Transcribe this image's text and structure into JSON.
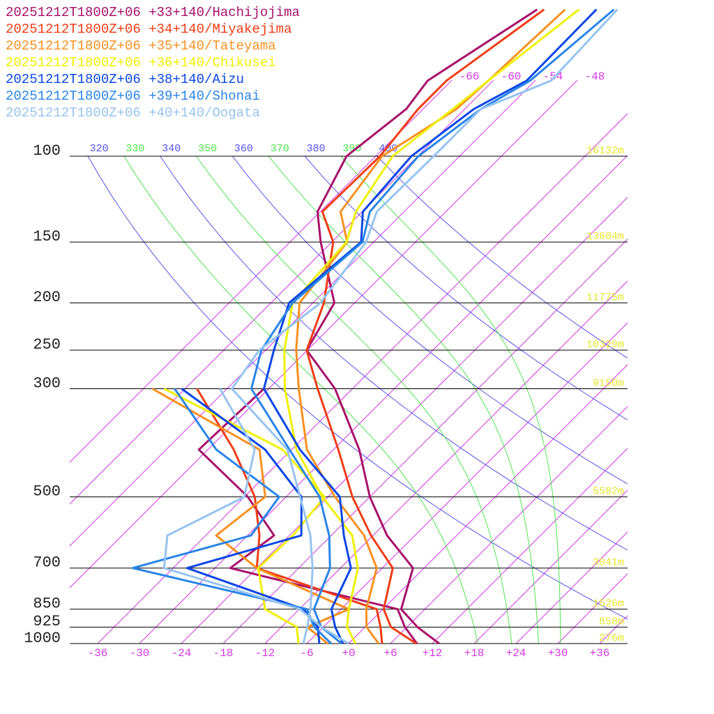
{
  "chart_data": {
    "type": "skewt",
    "ylim": [
      1000,
      100
    ],
    "log_y": true,
    "xlim": [
      -40,
      40
    ],
    "xticks": [
      -36,
      -30,
      -24,
      -18,
      -12,
      -6,
      {
        "value": 0,
        "label": "+0"
      },
      {
        "value": 6,
        "label": "+6"
      },
      {
        "value": 12,
        "label": "+12"
      },
      {
        "value": 18,
        "label": "+18"
      },
      {
        "value": 24,
        "label": "+24"
      },
      {
        "value": 30,
        "label": "+30"
      },
      {
        "value": 36,
        "label": "+36"
      }
    ],
    "isotherm_labels": [
      -66,
      -60,
      -54,
      -48
    ],
    "isotherm_color": "#d436e6",
    "dry_adiabats": [
      320,
      340,
      360,
      380,
      400
    ],
    "dry_adiabat_color": "#5252e8",
    "moist_adiabats": [
      330,
      350,
      370,
      390
    ],
    "moist_adiabat_color": "#4ee44e",
    "pressure_ticks": [
      100,
      150,
      200,
      250,
      300,
      500,
      700,
      850,
      925,
      1000
    ],
    "height_labels": [
      {
        "value": 16132,
        "label": "16132m"
      },
      {
        "value": 13604,
        "label": "13604m"
      },
      {
        "value": 11775,
        "label": "11775m"
      },
      {
        "value": 10329,
        "label": "10329m"
      },
      {
        "value": 9150,
        "label": "9150m"
      },
      {
        "value": 5582,
        "label": "5582m"
      },
      {
        "value": 3041,
        "label": "3041m"
      },
      {
        "value": 1526,
        "label": "1526m"
      },
      {
        "value": 858,
        "label": "858m"
      },
      {
        "value": 276,
        "label": "276m"
      }
    ],
    "height_label_color": "#e6e62a",
    "series": [
      {
        "name": "20251212T1800Z+06 +33+140/Hachijojima",
        "color": "#a8106a",
        "pressure": [
          1000,
          925,
          850,
          700,
          600,
          500,
          400,
          300,
          250,
          200,
          150,
          130,
          100,
          80,
          70,
          50
        ],
        "temperature": [
          13.0,
          7.5,
          2.6,
          -1.6,
          -10.0,
          -18.0,
          -26.3,
          -38.5,
          -48.1,
          -50.9,
          -61.6,
          -66.4,
          -70.2,
          -68.4,
          -69.4,
          -63.9
        ],
        "dewpoint_pressure": [
          1000,
          925,
          850,
          700,
          600,
          500,
          400,
          300
        ],
        "dewpoint": [
          9.8,
          5.7,
          2.1,
          -27.8,
          -26.2,
          -35.5,
          -49.3,
          -48.7
        ]
      },
      {
        "name": "20251212T1800Z+06 +34+140/Miyakejima",
        "color": "#f03c14",
        "pressure": [
          1000,
          925,
          850,
          700,
          600,
          500,
          400,
          300,
          250,
          200,
          150,
          130,
          100,
          80,
          70,
          50
        ],
        "temperature": [
          9.7,
          3.7,
          0.1,
          -4.5,
          -12.3,
          -20.5,
          -29.3,
          -41.0,
          -48.1,
          -52.4,
          -59.8,
          -65.7,
          -65.4,
          -66.7,
          -66.7,
          -62.9
        ],
        "dewpoint_pressure": [
          1000,
          925,
          850,
          700,
          600,
          500,
          400,
          300
        ],
        "dewpoint": [
          4.8,
          2.2,
          -0.9,
          -24.0,
          -28.3,
          -34.5,
          -44.3,
          -58.3
        ]
      },
      {
        "name": "20251212T1800Z+06 +35+140/Tateyama",
        "color": "#f7901e",
        "pressure": [
          1000,
          925,
          850,
          700,
          600,
          500,
          400,
          300,
          250,
          200,
          150,
          130,
          100,
          80,
          70,
          50
        ],
        "temperature": [
          4.3,
          0.2,
          -2.4,
          -6.8,
          -13.3,
          -23.0,
          -33.8,
          -43.7,
          -49.6,
          -55.9,
          -57.8,
          -63.1,
          -65.1,
          -61.2,
          -60.7,
          -59.9
        ],
        "dewpoint_pressure": [
          1000,
          925,
          850,
          700,
          600,
          500,
          400,
          300
        ],
        "dewpoint": [
          -3.0,
          -8.3,
          -4.9,
          -24.0,
          -34.5,
          -33.0,
          -40.6,
          -64.7
        ]
      },
      {
        "name": "20251212T1800Z+06 +36+140/Chikusei",
        "color": "#f0f000",
        "pressure": [
          1000,
          925,
          850,
          700,
          600,
          500,
          400,
          300,
          250,
          200,
          150,
          130,
          100,
          80,
          70,
          50
        ],
        "temperature": [
          1.0,
          -2.6,
          -4.9,
          -9.5,
          -15.0,
          -24.8,
          -35.3,
          -45.7,
          -51.3,
          -56.9,
          -57.9,
          -60.9,
          -63.6,
          -61.7,
          -60.7,
          -57.9
        ],
        "dewpoint_pressure": [
          1000,
          925,
          850,
          700,
          600,
          500,
          400,
          300
        ],
        "dewpoint": [
          -7.2,
          -9.8,
          -16.9,
          -23.8,
          -23.5,
          -24.5,
          -37.3,
          -63.0
        ]
      },
      {
        "name": "20251212T1800Z+06 +38+140/Aizu",
        "color": "#0a46e6",
        "pressure": [
          1000,
          925,
          850,
          700,
          600,
          500,
          400,
          300,
          250,
          200,
          150,
          130,
          100,
          80,
          70,
          50
        ],
        "temperature": [
          -0.8,
          -4.3,
          -7.4,
          -10.5,
          -16.2,
          -22.3,
          -34.8,
          -48.7,
          -52.8,
          -57.4,
          -55.8,
          -59.9,
          -60.9,
          -58.7,
          -55.2,
          -55.4
        ],
        "dewpoint_pressure": [
          1000,
          925,
          850,
          700,
          600,
          500,
          400,
          300
        ],
        "dewpoint": [
          -4.2,
          -6.8,
          -11.4,
          -34.0,
          -22.3,
          -27.8,
          -39.8,
          -60.5
        ]
      },
      {
        "name": "20251212T1800Z+06 +39+140/Shonai",
        "color": "#2884e8",
        "pressure": [
          1000,
          925,
          850,
          700,
          600,
          500,
          400,
          300,
          250,
          200,
          150,
          130,
          100,
          80,
          70,
          50
        ],
        "temperature": [
          -1.0,
          -6.3,
          -9.9,
          -13.5,
          -18.3,
          -25.2,
          -36.3,
          -50.5,
          -54.6,
          -56.9,
          -55.6,
          -58.9,
          -59.9,
          -57.7,
          -54.7,
          -52.9
        ],
        "dewpoint_pressure": [
          1000,
          925,
          850,
          700,
          600,
          500,
          400,
          300
        ],
        "dewpoint": [
          -2.5,
          -7.3,
          -10.9,
          -41.8,
          -29.5,
          -31.0,
          -46.8,
          -61.5
        ]
      },
      {
        "name": "20251212T1800Z+06 +40+140/Oogata",
        "color": "#96c3f0",
        "pressure": [
          1000,
          925,
          850,
          700,
          600,
          500,
          400,
          300,
          250,
          200,
          150,
          130,
          100,
          80,
          70,
          50
        ],
        "temperature": [
          -6.5,
          -8.3,
          -10.4,
          -16.0,
          -21.0,
          -28.0,
          -36.6,
          -53.3,
          -54.9,
          -52.9,
          -55.1,
          -57.9,
          -57.7,
          -57.7,
          -51.7,
          -52.4
        ],
        "dewpoint_pressure": [
          1000,
          925,
          850,
          700,
          600,
          500,
          400,
          300
        ],
        "dewpoint": [
          0.0,
          -6.3,
          -11.9,
          -37.3,
          -41.5,
          -36.0,
          -41.3,
          -55.0
        ]
      }
    ]
  }
}
